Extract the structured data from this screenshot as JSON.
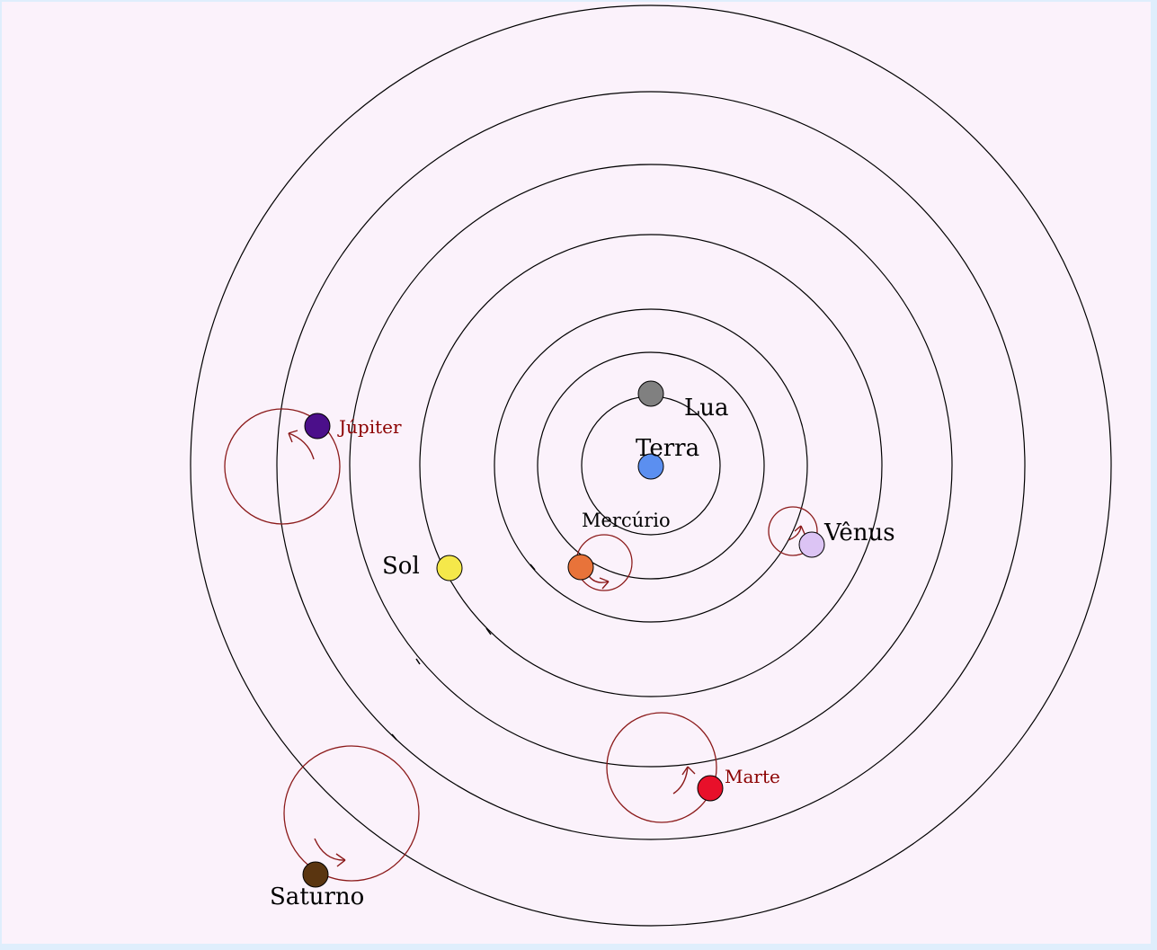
{
  "labels": {
    "lua": "Lua",
    "terra": "Terra",
    "mercurio": "Mercúrio",
    "venus": "Vênus",
    "sol": "Sol",
    "jupiter": "Júpiter",
    "marte": "Marte",
    "saturno": "Saturno"
  },
  "colors": {
    "background": "#fbf2fb",
    "frame": "#dfeefc",
    "orbit": "#000000",
    "epicycle": "#8b1a1a",
    "lua": "#808080",
    "terra": "#5b8ff0",
    "mercurio": "#e8733a",
    "venus": "#dcc4f4",
    "sol": "#f5e84a",
    "jupiter": "#4b0f8a",
    "marte": "#e8102a",
    "saturno": "#5a3510"
  }
}
